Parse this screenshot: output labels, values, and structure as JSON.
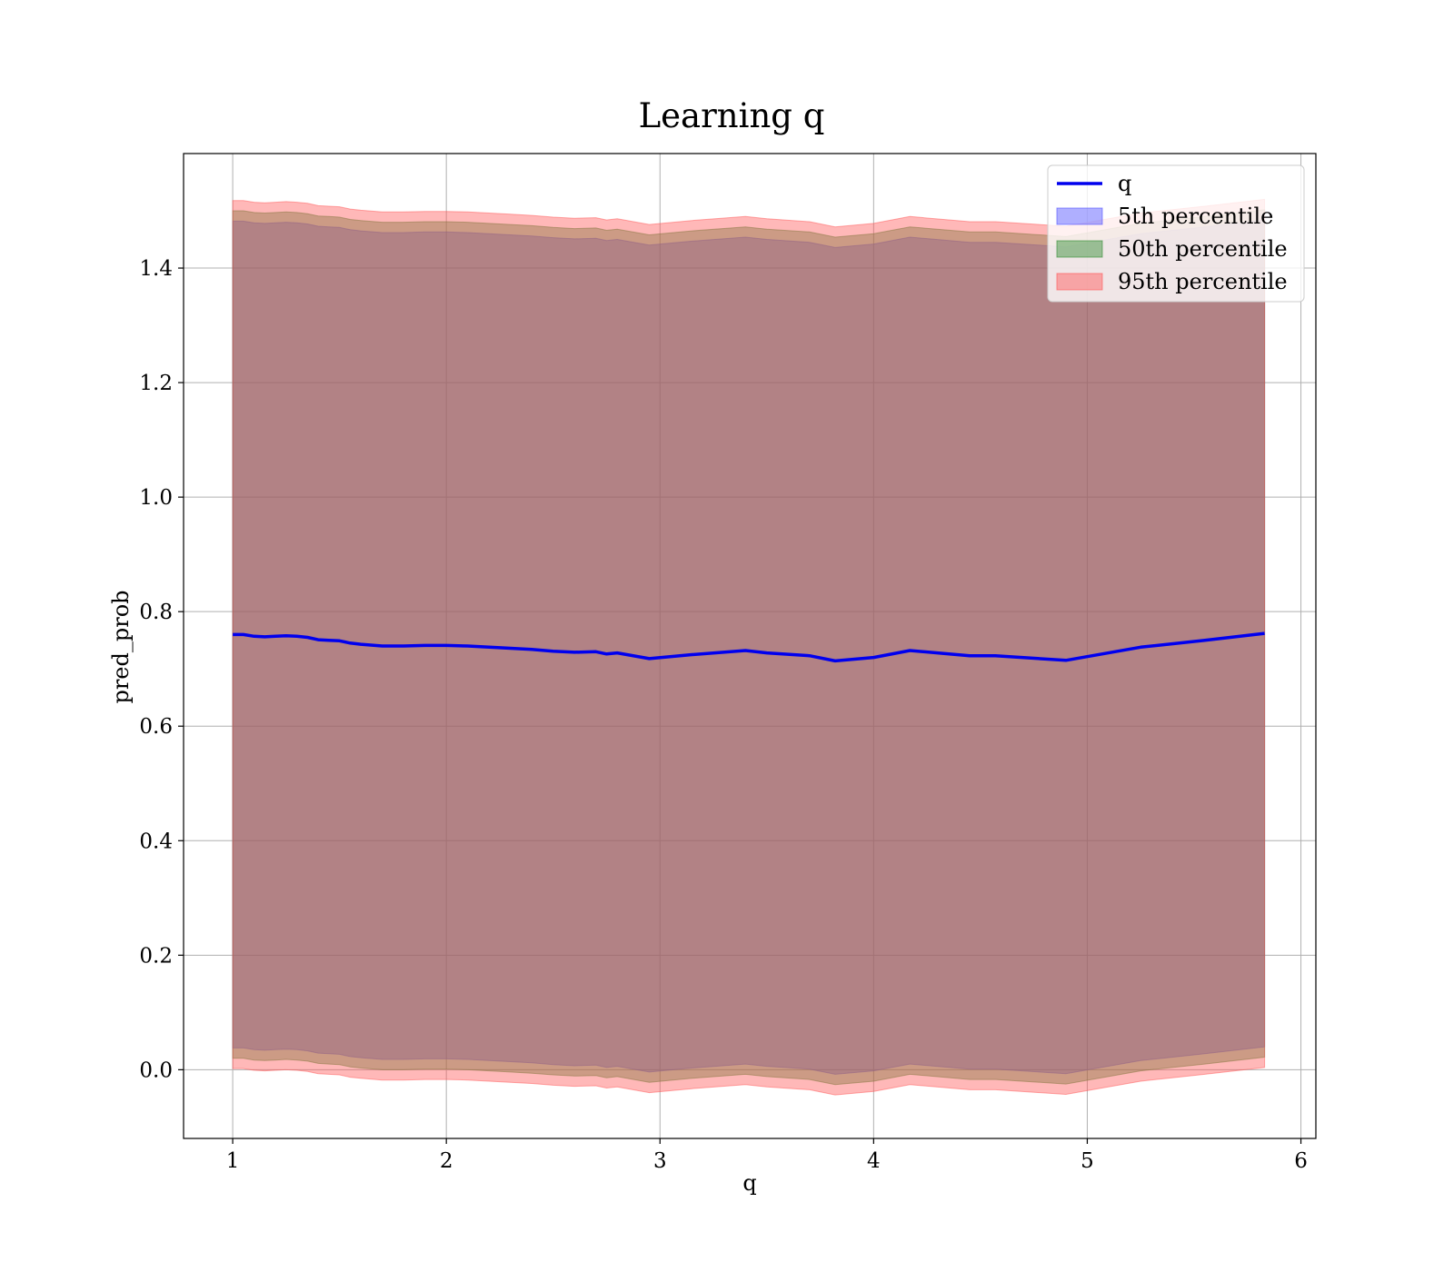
{
  "chart_data": {
    "type": "line",
    "title": "Learning q",
    "xlabel": "q",
    "ylabel": "pred_prob",
    "xlim": [
      0.77,
      6.07
    ],
    "ylim": [
      -0.12,
      1.6
    ],
    "xticks": [
      1,
      2,
      3,
      4,
      5,
      6
    ],
    "yticks": [
      0.0,
      0.2,
      0.4,
      0.6,
      0.8,
      1.0,
      1.2,
      1.4
    ],
    "xtick_labels": [
      "1",
      "2",
      "3",
      "4",
      "5",
      "6"
    ],
    "ytick_labels": [
      "0.0",
      "0.2",
      "0.4",
      "0.6",
      "0.8",
      "1.0",
      "1.2",
      "1.4"
    ],
    "grid": true,
    "legend_position": "top-right",
    "x": [
      1.0,
      1.05,
      1.1,
      1.15,
      1.2,
      1.25,
      1.3,
      1.35,
      1.4,
      1.45,
      1.5,
      1.55,
      1.6,
      1.7,
      1.8,
      1.9,
      2.0,
      2.1,
      2.2,
      2.3,
      2.4,
      2.5,
      2.6,
      2.7,
      2.75,
      2.8,
      2.95,
      3.15,
      3.4,
      3.5,
      3.7,
      3.82,
      4.0,
      4.17,
      4.45,
      4.57,
      4.9,
      5.25,
      5.55,
      5.83
    ],
    "series": [
      {
        "name": "q",
        "color": "#0000ee",
        "values": [
          0.76,
          0.76,
          0.757,
          0.756,
          0.757,
          0.758,
          0.757,
          0.755,
          0.751,
          0.75,
          0.749,
          0.745,
          0.743,
          0.74,
          0.74,
          0.741,
          0.741,
          0.74,
          0.738,
          0.736,
          0.734,
          0.731,
          0.729,
          0.73,
          0.726,
          0.728,
          0.718,
          0.725,
          0.732,
          0.728,
          0.723,
          0.714,
          0.72,
          0.732,
          0.723,
          0.723,
          0.715,
          0.738,
          0.75,
          0.762
        ]
      }
    ],
    "bands": [
      {
        "name": "5th percentile",
        "color": "#4d4dff",
        "lower": [
          0.038,
          0.038,
          0.035,
          0.034,
          0.035,
          0.036,
          0.035,
          0.033,
          0.029,
          0.028,
          0.027,
          0.023,
          0.021,
          0.018,
          0.018,
          0.019,
          0.019,
          0.018,
          0.016,
          0.014,
          0.012,
          0.009,
          0.007,
          0.008,
          0.004,
          0.006,
          -0.004,
          0.003,
          0.01,
          0.006,
          0.001,
          -0.008,
          -0.002,
          0.01,
          0.001,
          0.001,
          -0.007,
          0.016,
          0.028,
          0.04
        ],
        "upper": [
          1.482,
          1.482,
          1.479,
          1.478,
          1.479,
          1.48,
          1.479,
          1.477,
          1.473,
          1.472,
          1.471,
          1.467,
          1.465,
          1.462,
          1.462,
          1.463,
          1.463,
          1.462,
          1.46,
          1.458,
          1.456,
          1.453,
          1.451,
          1.452,
          1.448,
          1.45,
          1.44,
          1.447,
          1.454,
          1.45,
          1.445,
          1.436,
          1.442,
          1.454,
          1.445,
          1.445,
          1.437,
          1.46,
          1.472,
          1.484
        ]
      },
      {
        "name": "50th percentile",
        "color": "#2e8b2e",
        "lower": [
          0.02,
          0.02,
          0.017,
          0.016,
          0.017,
          0.018,
          0.017,
          0.015,
          0.011,
          0.01,
          0.009,
          0.005,
          0.003,
          0.0,
          0.0,
          0.001,
          0.001,
          0.0,
          -0.002,
          -0.004,
          -0.006,
          -0.009,
          -0.011,
          -0.01,
          -0.014,
          -0.012,
          -0.022,
          -0.015,
          -0.008,
          -0.012,
          -0.017,
          -0.026,
          -0.02,
          -0.008,
          -0.017,
          -0.017,
          -0.025,
          -0.002,
          0.01,
          0.022
        ],
        "upper": [
          1.5,
          1.5,
          1.497,
          1.496,
          1.497,
          1.498,
          1.497,
          1.495,
          1.491,
          1.49,
          1.489,
          1.485,
          1.483,
          1.48,
          1.48,
          1.481,
          1.481,
          1.48,
          1.478,
          1.476,
          1.474,
          1.471,
          1.469,
          1.47,
          1.466,
          1.468,
          1.458,
          1.465,
          1.472,
          1.468,
          1.463,
          1.454,
          1.46,
          1.472,
          1.463,
          1.463,
          1.455,
          1.478,
          1.49,
          1.502
        ]
      },
      {
        "name": "95th percentile",
        "color": "#ff5555",
        "lower": [
          0.002,
          0.002,
          -0.001,
          -0.002,
          -0.001,
          0.0,
          -0.001,
          -0.003,
          -0.007,
          -0.008,
          -0.009,
          -0.013,
          -0.015,
          -0.018,
          -0.018,
          -0.017,
          -0.017,
          -0.018,
          -0.02,
          -0.022,
          -0.024,
          -0.027,
          -0.029,
          -0.028,
          -0.032,
          -0.03,
          -0.04,
          -0.033,
          -0.026,
          -0.03,
          -0.035,
          -0.044,
          -0.038,
          -0.026,
          -0.035,
          -0.035,
          -0.043,
          -0.02,
          -0.008,
          0.004
        ],
        "upper": [
          1.518,
          1.518,
          1.515,
          1.514,
          1.515,
          1.516,
          1.515,
          1.513,
          1.509,
          1.508,
          1.507,
          1.503,
          1.501,
          1.498,
          1.498,
          1.499,
          1.499,
          1.498,
          1.496,
          1.494,
          1.492,
          1.489,
          1.487,
          1.488,
          1.484,
          1.486,
          1.476,
          1.483,
          1.49,
          1.486,
          1.481,
          1.472,
          1.478,
          1.49,
          1.481,
          1.481,
          1.473,
          1.496,
          1.508,
          1.52
        ]
      }
    ]
  }
}
